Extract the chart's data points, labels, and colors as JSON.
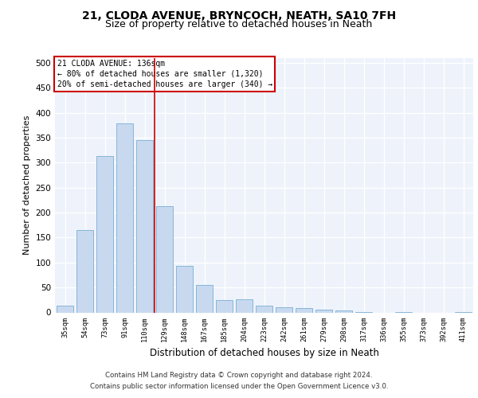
{
  "title": "21, CLODA AVENUE, BRYNCOCH, NEATH, SA10 7FH",
  "subtitle": "Size of property relative to detached houses in Neath",
  "xlabel": "Distribution of detached houses by size in Neath",
  "ylabel": "Number of detached properties",
  "categories": [
    "35sqm",
    "54sqm",
    "73sqm",
    "91sqm",
    "110sqm",
    "129sqm",
    "148sqm",
    "167sqm",
    "185sqm",
    "204sqm",
    "223sqm",
    "242sqm",
    "261sqm",
    "279sqm",
    "298sqm",
    "317sqm",
    "336sqm",
    "355sqm",
    "373sqm",
    "392sqm",
    "411sqm"
  ],
  "values": [
    13,
    165,
    313,
    378,
    345,
    213,
    93,
    55,
    24,
    27,
    13,
    10,
    8,
    6,
    4,
    1,
    0,
    1,
    0,
    0,
    1
  ],
  "bar_color": "#c8d9ef",
  "bar_edge_color": "#7aadd4",
  "highlight_label": "21 CLODA AVENUE: 136sqm",
  "annotation_line1": "← 80% of detached houses are smaller (1,320)",
  "annotation_line2": "20% of semi-detached houses are larger (340) →",
  "vline_color": "#cc0000",
  "annotation_box_edge": "#cc0000",
  "ylim": [
    0,
    510
  ],
  "yticks": [
    0,
    50,
    100,
    150,
    200,
    250,
    300,
    350,
    400,
    450,
    500
  ],
  "footer1": "Contains HM Land Registry data © Crown copyright and database right 2024.",
  "footer2": "Contains public sector information licensed under the Open Government Licence v3.0.",
  "bg_color": "#eef3fb",
  "title_fontsize": 10,
  "subtitle_fontsize": 9,
  "vline_x": 4.5
}
